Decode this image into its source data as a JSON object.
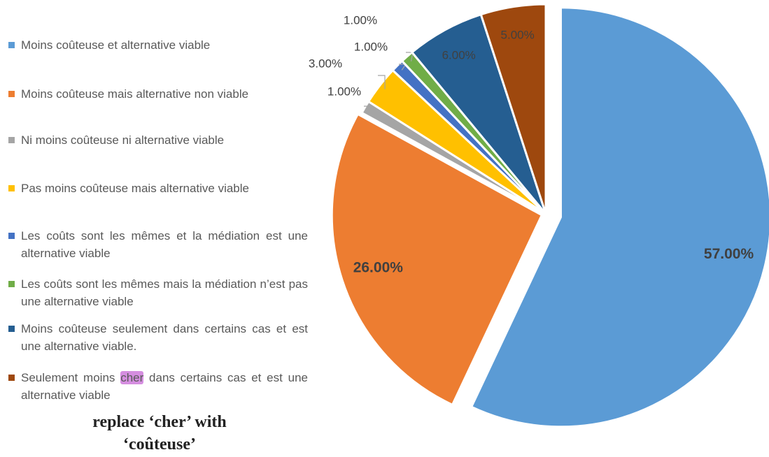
{
  "chart_data": {
    "type": "pie",
    "categories": [
      "Moins coûteuse et alternative viable",
      "Moins coûteuse mais alternative non viable",
      "Ni moins coûteuse ni alternative viable",
      "Pas moins coûteuse mais alternative viable",
      "Les coûts sont les mêmes et la médiation est une alternative viable",
      "Les coûts sont les mêmes mais la médiation n’est pas une alternative viable",
      "Moins coûteuse seulement dans certains cas et est une alternative viable.",
      "Seulement moins cher dans certains cas et est une alternative viable"
    ],
    "values": [
      57,
      26,
      1,
      3,
      1,
      1,
      6,
      5
    ],
    "value_labels": [
      "57.00%",
      "26.00%",
      "1.00%",
      "3.00%",
      "1.00%",
      "1.00%",
      "6.00%",
      "5.00%"
    ],
    "colors": [
      "#5b9bd5",
      "#ed7d31",
      "#a5a5a5",
      "#ffc000",
      "#4472c4",
      "#70ad47",
      "#255e91",
      "#9e480e"
    ],
    "highlight": "cher",
    "annotation": "replace ‘cher’ with ‘coûteuse’",
    "legend": "left"
  }
}
